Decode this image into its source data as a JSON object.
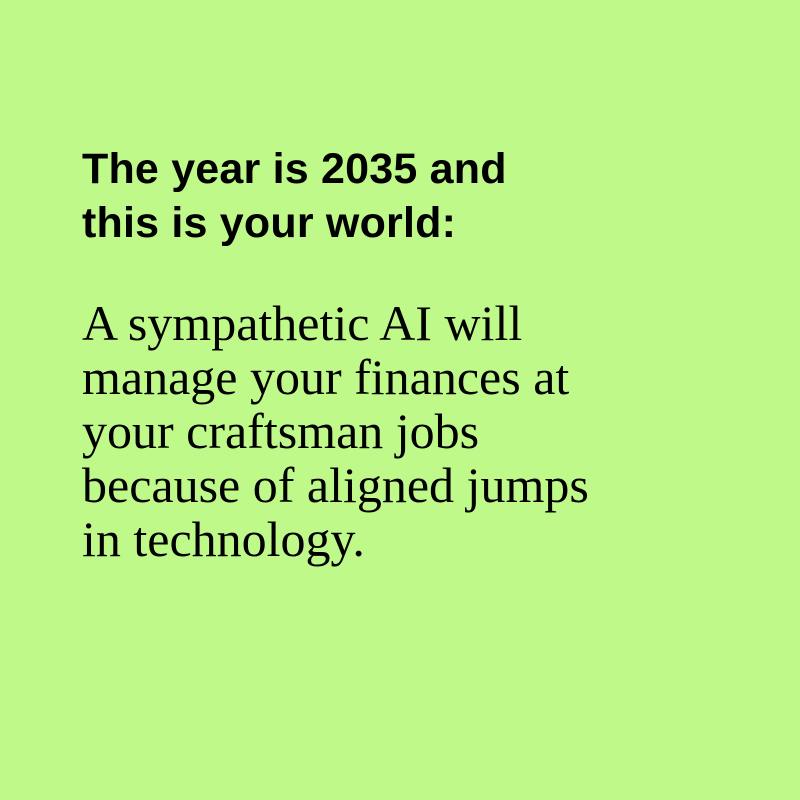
{
  "colors": {
    "background": "#bff98a",
    "text": "#000000"
  },
  "headline": {
    "lines": [
      "The year is 2035 and",
      "this is your world:"
    ]
  },
  "body": {
    "lines": [
      "A sympathetic AI will",
      "manage your finances at",
      "your craftsman jobs",
      "because of aligned jumps",
      "in technology."
    ]
  }
}
